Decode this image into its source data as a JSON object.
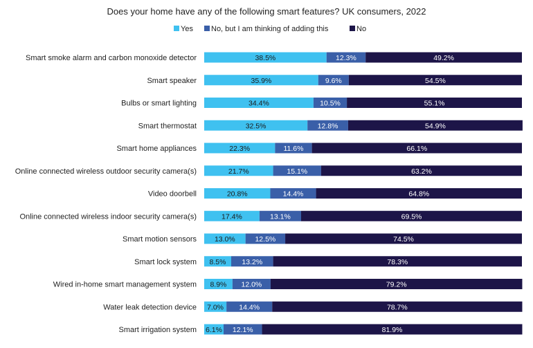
{
  "chart_data": {
    "type": "bar",
    "orientation": "horizontal",
    "stacked": true,
    "stack_mode": "percent",
    "title": "Does your home have any of the following smart features? UK consumers, 2022",
    "xlabel": "",
    "ylabel": "",
    "xlim": [
      0,
      100
    ],
    "grid": false,
    "legend_position": "top",
    "categories": [
      "Smart smoke alarm and carbon monoxide detector",
      "Smart speaker",
      "Bulbs or smart lighting",
      "Smart thermostat",
      "Smart home appliances",
      "Online connected wireless outdoor security camera(s)",
      "Video doorbell",
      "Online connected wireless indoor security camera(s)",
      "Smart motion sensors",
      "Smart lock system",
      "Wired in-home smart management system",
      "Water leak detection device",
      "Smart irrigation system"
    ],
    "series": [
      {
        "name": "Yes",
        "color": "#3fc1f0",
        "label_color": "#1a1a1a",
        "values": [
          38.5,
          35.9,
          34.4,
          32.5,
          22.3,
          21.7,
          20.8,
          17.4,
          13.0,
          8.5,
          8.9,
          7.0,
          6.1
        ],
        "labels": [
          "38.5%",
          "35.9%",
          "34.4%",
          "32.5%",
          "22.3%",
          "21.7%",
          "20.8%",
          "17.4%",
          "13.0%",
          "8.5%",
          "8.9%",
          "7.0%",
          "6.1%"
        ]
      },
      {
        "name": "No, but I am thinking of adding this",
        "color": "#3a5fa8",
        "label_color": "#ffffff",
        "values": [
          12.3,
          9.6,
          10.5,
          12.8,
          11.6,
          15.1,
          14.4,
          13.1,
          12.5,
          13.2,
          12.0,
          14.4,
          12.1
        ],
        "labels": [
          "12.3%",
          "9.6%",
          "10.5%",
          "12.8%",
          "11.6%",
          "15.1%",
          "14.4%",
          "13.1%",
          "12.5%",
          "13.2%",
          "12.0%",
          "14.4%",
          "12.1%"
        ]
      },
      {
        "name": "No",
        "color": "#1d1548",
        "label_color": "#ffffff",
        "values": [
          49.2,
          54.5,
          55.1,
          54.9,
          66.1,
          63.2,
          64.8,
          69.5,
          74.5,
          78.3,
          79.2,
          78.7,
          81.9
        ],
        "labels": [
          "49.2%",
          "54.5%",
          "55.1%",
          "54.9%",
          "66.1%",
          "63.2%",
          "64.8%",
          "69.5%",
          "74.5%",
          "78.3%",
          "79.2%",
          "78.7%",
          "81.9%"
        ]
      }
    ]
  }
}
